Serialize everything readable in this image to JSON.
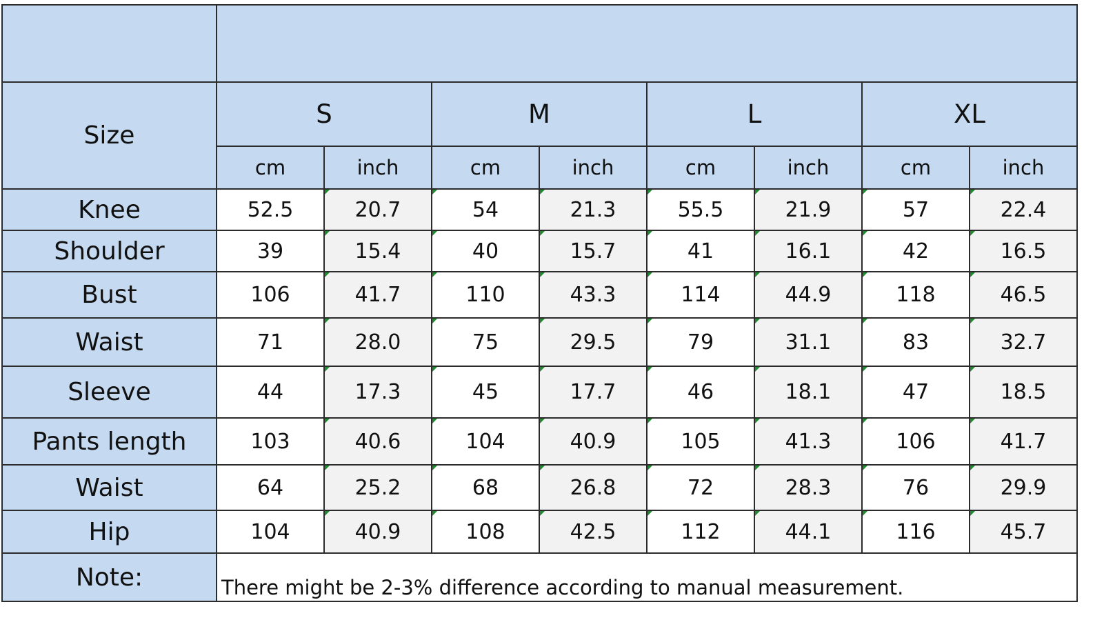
{
  "header": {
    "size_label": "Size",
    "sizes": [
      "S",
      "M",
      "L",
      "XL"
    ],
    "units": [
      "cm",
      "inch"
    ]
  },
  "rows": [
    {
      "label": "Knee",
      "values": [
        "52.5",
        "20.7",
        "54",
        "21.3",
        "55.5",
        "21.9",
        "57",
        "22.4"
      ]
    },
    {
      "label": "Shoulder",
      "values": [
        "39",
        "15.4",
        "40",
        "15.7",
        "41",
        "16.1",
        "42",
        "16.5"
      ]
    },
    {
      "label": "Bust",
      "values": [
        "106",
        "41.7",
        "110",
        "43.3",
        "114",
        "44.9",
        "118",
        "46.5"
      ]
    },
    {
      "label": "Waist",
      "values": [
        "71",
        "28.0",
        "75",
        "29.5",
        "79",
        "31.1",
        "83",
        "32.7"
      ]
    },
    {
      "label": "Sleeve",
      "values": [
        "44",
        "17.3",
        "45",
        "17.7",
        "46",
        "18.1",
        "47",
        "18.5"
      ]
    },
    {
      "label": "Pants length",
      "values": [
        "103",
        "40.6",
        "104",
        "40.9",
        "105",
        "41.3",
        "106",
        "41.7"
      ]
    },
    {
      "label": "Waist",
      "values": [
        "64",
        "25.2",
        "68",
        "26.8",
        "72",
        "28.3",
        "76",
        "29.9"
      ]
    },
    {
      "label": "Hip",
      "values": [
        "104",
        "40.9",
        "108",
        "42.5",
        "112",
        "44.1",
        "116",
        "45.7"
      ]
    }
  ],
  "note": {
    "label": "Note:",
    "text": "There might be 2-3% difference according to manual measurement."
  },
  "colors": {
    "header_fill": "#c5d9f1",
    "alt_column_fill": "#f2f2f2",
    "grid_line": "#2b2b2b",
    "cell_marker": "#1f8a2e"
  }
}
